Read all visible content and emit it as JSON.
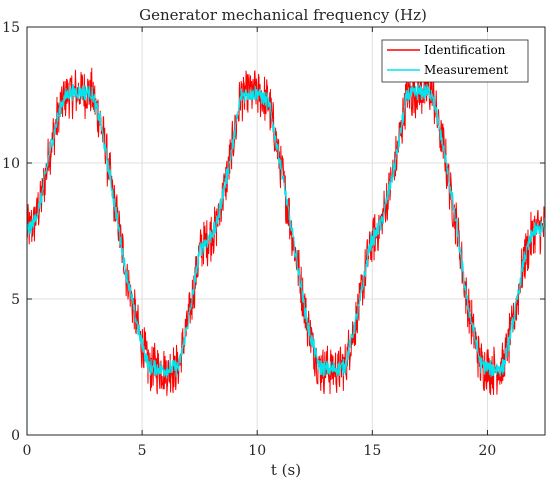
{
  "chart_data": {
    "type": "line",
    "title": "Generator mechanical frequency (Hz)",
    "xlabel": "t (s)",
    "ylabel": "",
    "xlim": [
      0,
      22.5
    ],
    "ylim": [
      0,
      15
    ],
    "xticks": [
      0,
      5,
      10,
      15,
      20
    ],
    "yticks": [
      0,
      5,
      10,
      15
    ],
    "grid": true,
    "legend_position": "top-right",
    "series": [
      {
        "name": "Identification",
        "color": "#ff0000",
        "noise_amplitude": 1.0,
        "x": [
          0,
          0.3,
          0.6,
          1.0,
          1.5,
          1.8,
          2.2,
          2.8,
          3.2,
          3.7,
          4.3,
          4.9,
          5.3,
          6.0,
          6.6,
          7.1,
          7.5,
          8.2,
          8.8,
          9.3,
          10.0,
          10.5,
          11.0,
          11.6,
          12.2,
          12.7,
          13.1,
          13.8,
          14.4,
          14.9,
          15.4,
          16.0,
          16.5,
          17.0,
          17.6,
          18.1,
          18.6,
          19.1,
          19.7,
          20.2,
          20.7,
          21.2,
          21.6,
          22.0,
          22.5
        ],
        "values": [
          7.5,
          7.8,
          8.6,
          10.5,
          12.2,
          12.6,
          12.6,
          12.6,
          11.5,
          9.0,
          6.0,
          3.6,
          2.5,
          2.4,
          2.5,
          4.6,
          6.8,
          7.6,
          10.0,
          12.5,
          12.6,
          12.2,
          10.0,
          7.0,
          4.0,
          2.5,
          2.4,
          2.5,
          4.6,
          7.0,
          7.8,
          10.0,
          12.5,
          12.6,
          12.6,
          10.5,
          8.0,
          5.0,
          2.6,
          2.4,
          2.5,
          4.5,
          6.5,
          7.5,
          7.6
        ]
      },
      {
        "name": "Measurement",
        "color": "#00e5ee",
        "noise_amplitude": 0.35,
        "x": [
          0,
          0.3,
          0.6,
          1.0,
          1.5,
          1.8,
          2.2,
          2.8,
          3.2,
          3.7,
          4.3,
          4.9,
          5.3,
          6.0,
          6.6,
          7.1,
          7.5,
          8.2,
          8.8,
          9.3,
          10.0,
          10.5,
          11.0,
          11.6,
          12.2,
          12.7,
          13.1,
          13.8,
          14.4,
          14.9,
          15.4,
          16.0,
          16.5,
          17.0,
          17.6,
          18.1,
          18.6,
          19.1,
          19.7,
          20.2,
          20.7,
          21.2,
          21.6,
          22.0,
          22.5
        ],
        "values": [
          7.5,
          7.8,
          8.6,
          10.5,
          12.2,
          12.6,
          12.6,
          12.6,
          11.5,
          9.0,
          6.0,
          3.6,
          2.5,
          2.4,
          2.5,
          4.6,
          6.8,
          7.6,
          10.0,
          12.5,
          12.6,
          12.2,
          10.0,
          7.0,
          4.0,
          2.5,
          2.4,
          2.5,
          4.6,
          7.0,
          7.8,
          10.0,
          12.5,
          12.6,
          12.6,
          10.5,
          8.0,
          5.0,
          2.6,
          2.4,
          2.5,
          4.5,
          6.5,
          7.5,
          7.6
        ]
      }
    ]
  }
}
